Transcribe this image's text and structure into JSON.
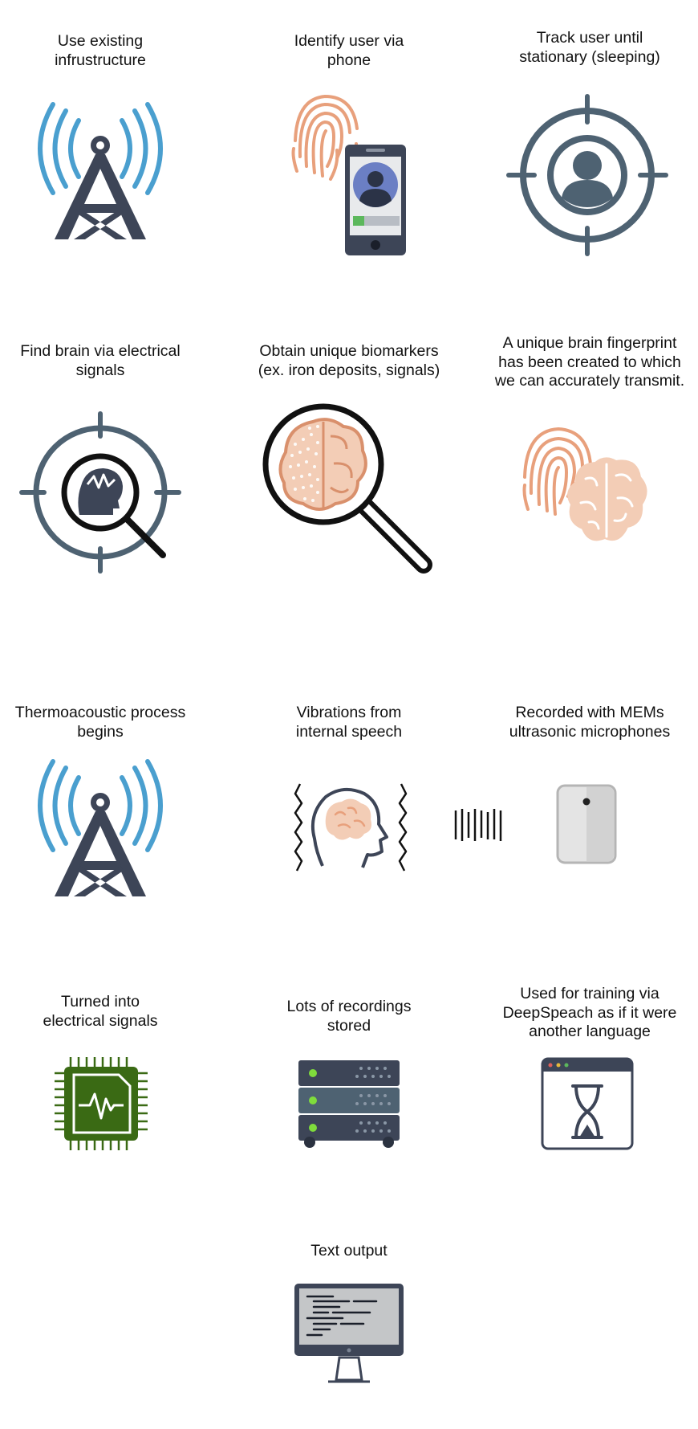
{
  "steps": [
    {
      "caption": "Use existing\ninfrustructure",
      "icon": "radio-tower-icon"
    },
    {
      "caption": "Identify user via\nphone",
      "icon": "fingerprint-phone-icon"
    },
    {
      "caption": "Track user until\nstationary (sleeping)",
      "icon": "target-user-icon"
    },
    {
      "caption": "Find brain via electrical\nsignals",
      "icon": "brain-search-target-icon"
    },
    {
      "caption": "Obtain unique biomarkers\n(ex. iron deposits, signals)",
      "icon": "brain-magnifier-icon"
    },
    {
      "caption": "A unique brain fingerprint\nhas been created to which\nwe can accurately transmit.",
      "icon": "fingerprint-brain-icon"
    },
    {
      "caption": "Thermoacoustic process\nbegins",
      "icon": "radio-tower-icon"
    },
    {
      "caption": "Vibrations from\ninternal speech",
      "icon": "vibrating-head-icon"
    },
    {
      "caption": "Recorded with MEMs\nultrasonic microphones",
      "icon": "mems-microphone-icon"
    },
    {
      "caption": "Turned into\nelectrical signals",
      "icon": "signal-chip-icon"
    },
    {
      "caption": "Lots of recordings\nstored",
      "icon": "server-rack-icon"
    },
    {
      "caption": "Used for training via\nDeepSpeach as if it were\nanother language",
      "icon": "loading-window-icon"
    },
    {
      "caption": "Text output",
      "icon": "computer-monitor-icon"
    }
  ],
  "colors": {
    "tower_waves": "#4a9fcf",
    "dark_slate": "#3d4557",
    "target_gray": "#4e6272",
    "fingerprint_orange": "#e8a07c",
    "brain_peach": "#f3cdb6",
    "chip_green": "#3a6a14",
    "led_green": "#7fdc3c"
  }
}
